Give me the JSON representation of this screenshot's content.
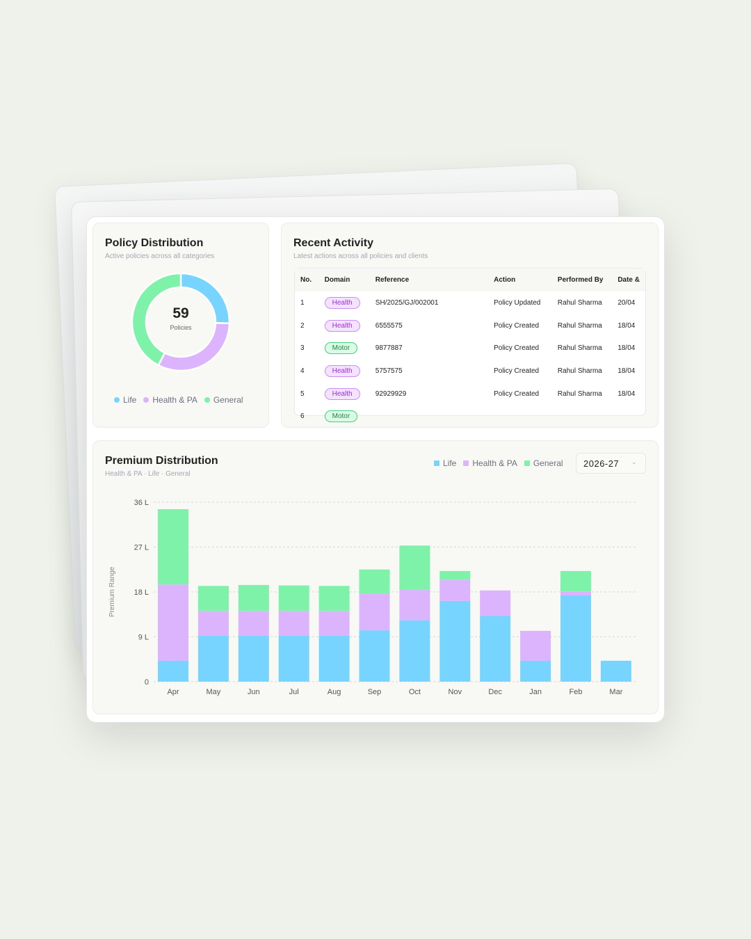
{
  "colors": {
    "life": "#76d4fe",
    "health": "#dbb4fd",
    "general": "#7ef2a8"
  },
  "policy_distribution": {
    "title": "Policy Distribution",
    "subtitle": "Active policies across all categories",
    "total": "59",
    "total_label": "Policies",
    "legend": [
      "Life",
      "Health & PA",
      "General"
    ]
  },
  "recent_activity": {
    "title": "Recent Activity",
    "subtitle": "Latest actions across all policies and clients",
    "columns": [
      "No.",
      "Domain",
      "Reference",
      "Action",
      "Performed By",
      "Date &"
    ],
    "rows": [
      {
        "no": "1",
        "domain": "Health",
        "ref": "SH/2025/GJ/002001",
        "action": "Policy Updated",
        "by": "Rahul Sharma",
        "date": "20/04"
      },
      {
        "no": "2",
        "domain": "Health",
        "ref": "6555575",
        "action": "Policy Created",
        "by": "Rahul Sharma",
        "date": "18/04"
      },
      {
        "no": "3",
        "domain": "Motor",
        "ref": "9877887",
        "action": "Policy Created",
        "by": "Rahul Sharma",
        "date": "18/04"
      },
      {
        "no": "4",
        "domain": "Health",
        "ref": "5757575",
        "action": "Policy Created",
        "by": "Rahul Sharma",
        "date": "18/04"
      },
      {
        "no": "5",
        "domain": "Health",
        "ref": "92929929",
        "action": "Policy Created",
        "by": "Rahul Sharma",
        "date": "18/04"
      },
      {
        "no": "6",
        "domain": "Motor",
        "ref": "",
        "action": "",
        "by": "",
        "date": ""
      }
    ]
  },
  "premium": {
    "title": "Premium Distribution",
    "subtitle": "Health & PA · Life · General",
    "legend": [
      "Life",
      "Health & PA",
      "General"
    ],
    "year_select": "2026-27"
  },
  "chart_data": [
    {
      "type": "pie",
      "variant": "donut",
      "categories": [
        "Life",
        "Health & PA",
        "General"
      ],
      "values": [
        15,
        19,
        25
      ],
      "center_text": "59 Policies",
      "legend": "bottom"
    },
    {
      "type": "bar",
      "stacked": true,
      "title": "Premium Distribution",
      "ylabel": "Premium Range",
      "categories": [
        "Apr",
        "May",
        "Jun",
        "Jul",
        "Aug",
        "Sep",
        "Oct",
        "Nov",
        "Dec",
        "Jan",
        "Feb",
        "Mar"
      ],
      "yticks": [
        "0",
        "9 L",
        "18 L",
        "27 L",
        "36 L"
      ],
      "ylim": [
        0,
        36
      ],
      "unit": "L",
      "grid": true,
      "legend": "top-right",
      "series": [
        {
          "name": "Life",
          "values": [
            4.2,
            9.2,
            9.2,
            9.2,
            9.2,
            10.3,
            12.3,
            16.2,
            13.2,
            4.2,
            17.3,
            4.2
          ]
        },
        {
          "name": "Health & PA",
          "values": [
            15.3,
            5,
            5,
            5,
            5,
            7.3,
            6.1,
            4.2,
            5.1,
            6,
            0.8,
            0
          ]
        },
        {
          "name": "General",
          "values": [
            15.1,
            5,
            5.2,
            5.1,
            5,
            4.9,
            8.9,
            1.8,
            0,
            0,
            4.1,
            0
          ]
        }
      ]
    }
  ]
}
